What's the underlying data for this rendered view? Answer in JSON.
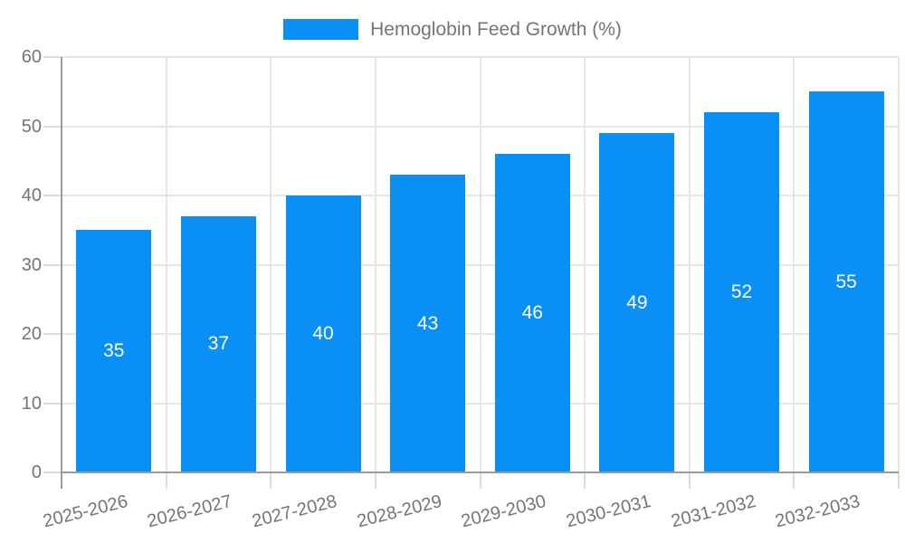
{
  "legend": {
    "label": "Hemoglobin Feed Growth (%)"
  },
  "chart_data": {
    "type": "bar",
    "title": "Hemoglobin Feed Growth (%)",
    "categories": [
      "2025-2026",
      "2026-2027",
      "2027-2028",
      "2028-2029",
      "2029-2030",
      "2030-2031",
      "2031-2032",
      "2032-2033"
    ],
    "values": [
      35,
      37,
      40,
      43,
      46,
      49,
      52,
      55
    ],
    "xlabel": "",
    "ylabel": "",
    "ylim": [
      0,
      60
    ],
    "yticks": [
      0,
      10,
      20,
      30,
      40,
      50,
      60
    ],
    "grid": true,
    "legend_position": "top",
    "value_labels": "inside-center",
    "colors": {
      "bar": "#0a90f5",
      "bar_value_label": "#ffffff",
      "axis_text": "#757575",
      "gridline": "#e6e6e6",
      "tick_mark": "#dcdcdc",
      "axis_line": "#9b9b9b",
      "background": "#ffffff"
    }
  }
}
